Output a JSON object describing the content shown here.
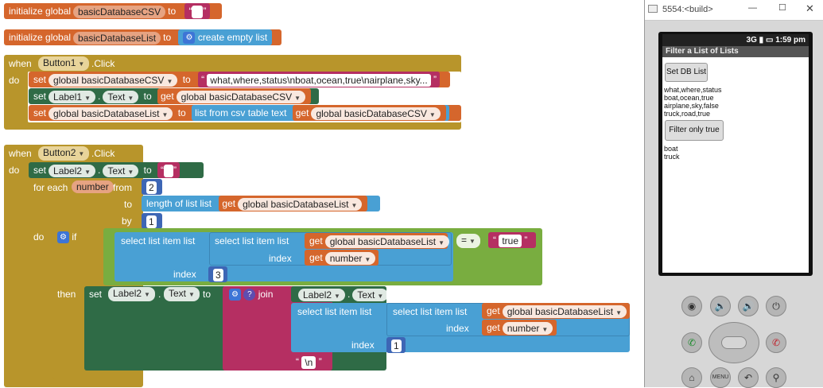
{
  "blocks": {
    "init_csv": {
      "kw": "initialize global",
      "name": "basicDatabaseCSV",
      "to": "to",
      "value": ""
    },
    "init_list": {
      "kw": "initialize global",
      "name": "basicDatabaseList",
      "to": "to",
      "create": "create empty list"
    },
    "b1": {
      "when": "when",
      "comp": "Button1",
      "event": ".Click",
      "do": "do",
      "s1_set": "set",
      "s1_var": "global basicDatabaseCSV",
      "s1_to": "to",
      "s1_val": "what,where,status\\nboat,ocean,true\\nairplane,sky...",
      "s2_set": "set",
      "s2_comp": "Label1",
      "s2_dot": ".",
      "s2_prop": "Text",
      "s2_to": "to",
      "s2_get": "get",
      "s2_var": "global basicDatabaseCSV",
      "s3_set": "set",
      "s3_var": "global basicDatabaseList",
      "s3_to": "to",
      "s3_fn": "list from csv table  text",
      "s3_get": "get",
      "s3_var2": "global basicDatabaseCSV"
    },
    "b2": {
      "when": "when",
      "comp": "Button2",
      "event": ".Click",
      "do": "do",
      "set": "set",
      "lbl": "Label2",
      "dot": ".",
      "prop": "Text",
      "to": "to",
      "val": "",
      "for": "for each",
      "var": "number",
      "from": "from",
      "from_v": "2",
      "to2": "to",
      "len": "length of list  list",
      "get": "get",
      "gvar": "global basicDatabaseList",
      "by": "by",
      "by_v": "1",
      "do2": "do",
      "if": "if",
      "sel1": "select list item  list",
      "sel2": "select list item  list",
      "getdb": "get",
      "db": "global basicDatabaseList",
      "index": "index",
      "getn": "get",
      "n": "number",
      "eq": "=",
      "true": "true",
      "index2": "index",
      "idx3": "3",
      "then": "then",
      "tset": "set",
      "tlbl": "Label2",
      "tdot": ".",
      "tprop": "Text",
      "tto": "to",
      "join": "join",
      "jlbl": "Label2",
      "jdot": ".",
      "jprop": "Text",
      "jsel1": "select list item  list",
      "jsel2": "select list item  list",
      "jget": "get",
      "jdb": "global basicDatabaseList",
      "jindex": "index",
      "jgetn": "get",
      "jn": "number",
      "jindex2": "index",
      "jidx1": "1",
      "nl": "\\n"
    }
  },
  "emulator": {
    "title": "5554:<build>",
    "time": "1:59",
    "ampm": "pm",
    "network": "3G",
    "app_title": "Filter a List of Lists",
    "btn1": "Set DB List",
    "label1": "what,where,status\nboat,ocean,true\nairplane,sky,false\ntruck,road,true",
    "btn2": "Filter only  true",
    "label2": "boat\ntruck",
    "hw": {
      "camera": "◉",
      "vol_down": "🔉",
      "vol_up": "🔊",
      "power": "⏻",
      "call": "✆",
      "end": "✆",
      "home": "⌂",
      "menu": "MENU",
      "back": "↶",
      "search": "⚲"
    }
  }
}
